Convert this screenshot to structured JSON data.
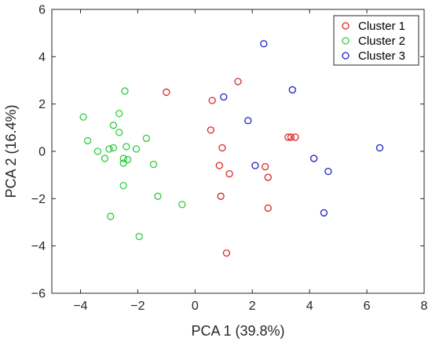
{
  "chart_data": {
    "type": "scatter",
    "title": "",
    "xlabel": "PCA 1 (39.8%)",
    "ylabel": "PCA 2 (16.4%)",
    "xlim": [
      -5,
      8
    ],
    "ylim": [
      -6,
      6
    ],
    "xticks": [
      -4,
      -2,
      0,
      2,
      4,
      6,
      8
    ],
    "yticks": [
      -6,
      -4,
      -2,
      0,
      2,
      4,
      6
    ],
    "grid": false,
    "legend_position": "top-right",
    "series": [
      {
        "name": "Cluster 1",
        "color": "#d62728",
        "points": [
          [
            -1.0,
            2.5
          ],
          [
            0.6,
            2.15
          ],
          [
            1.5,
            2.95
          ],
          [
            0.55,
            0.9
          ],
          [
            0.95,
            0.15
          ],
          [
            0.85,
            -0.6
          ],
          [
            1.2,
            -0.95
          ],
          [
            0.9,
            -1.9
          ],
          [
            1.1,
            -4.3
          ],
          [
            2.45,
            -0.65
          ],
          [
            2.55,
            -1.1
          ],
          [
            2.55,
            -2.4
          ],
          [
            3.25,
            0.6
          ],
          [
            3.35,
            0.6
          ],
          [
            3.5,
            0.6
          ]
        ]
      },
      {
        "name": "Cluster 2",
        "color": "#2ecc40",
        "points": [
          [
            -3.9,
            1.45
          ],
          [
            -3.75,
            0.45
          ],
          [
            -3.4,
            0.0
          ],
          [
            -3.15,
            -0.3
          ],
          [
            -3.0,
            0.1
          ],
          [
            -2.95,
            -2.75
          ],
          [
            -2.85,
            1.1
          ],
          [
            -2.85,
            0.15
          ],
          [
            -2.65,
            1.6
          ],
          [
            -2.65,
            0.8
          ],
          [
            -2.45,
            2.55
          ],
          [
            -2.5,
            -0.3
          ],
          [
            -2.5,
            -0.5
          ],
          [
            -2.5,
            -1.45
          ],
          [
            -2.4,
            0.2
          ],
          [
            -2.35,
            -0.35
          ],
          [
            -2.05,
            0.1
          ],
          [
            -1.95,
            -3.6
          ],
          [
            -1.7,
            0.55
          ],
          [
            -1.45,
            -0.55
          ],
          [
            -1.3,
            -1.9
          ],
          [
            -0.45,
            -2.25
          ]
        ]
      },
      {
        "name": "Cluster 3",
        "color": "#1f1fbf",
        "points": [
          [
            1.0,
            2.3
          ],
          [
            1.85,
            1.3
          ],
          [
            2.1,
            -0.6
          ],
          [
            2.4,
            4.55
          ],
          [
            3.4,
            2.6
          ],
          [
            4.15,
            -0.3
          ],
          [
            4.65,
            -0.85
          ],
          [
            4.5,
            -2.6
          ],
          [
            6.45,
            0.15
          ]
        ]
      }
    ]
  }
}
